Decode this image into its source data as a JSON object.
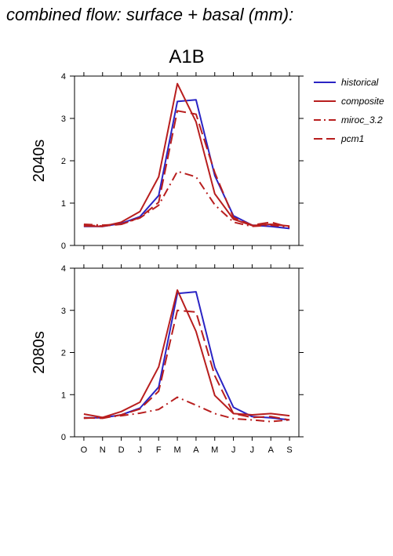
{
  "title": "combined flow: surface + basal (mm):",
  "chart_data": [
    {
      "type": "line",
      "title": "A1B",
      "ylabel": "2040s",
      "categories": [
        "O",
        "N",
        "D",
        "J",
        "F",
        "M",
        "A",
        "M",
        "J",
        "J",
        "A",
        "S"
      ],
      "ylim": [
        0,
        4
      ],
      "yticks": [
        0,
        1,
        2,
        3,
        4
      ],
      "series": [
        {
          "name": "historical",
          "color": "#2a24c4",
          "dash": "solid",
          "values": [
            0.45,
            0.45,
            0.52,
            0.68,
            1.18,
            3.4,
            3.44,
            1.65,
            0.7,
            0.48,
            0.45,
            0.4
          ]
        },
        {
          "name": "composite",
          "color": "#b81e1e",
          "dash": "solid",
          "values": [
            0.46,
            0.45,
            0.55,
            0.8,
            1.62,
            3.82,
            2.92,
            1.22,
            0.62,
            0.47,
            0.5,
            0.46
          ]
        },
        {
          "name": "miroc_3.2",
          "color": "#b81e1e",
          "dash": "dashdot",
          "values": [
            0.5,
            0.48,
            0.5,
            0.65,
            0.95,
            1.75,
            1.62,
            0.96,
            0.55,
            0.45,
            0.48,
            0.43
          ]
        },
        {
          "name": "pcm1",
          "color": "#b81e1e",
          "dash": "dash",
          "values": [
            0.48,
            0.46,
            0.5,
            0.66,
            1.02,
            3.18,
            3.1,
            1.72,
            0.66,
            0.48,
            0.55,
            0.43
          ]
        }
      ]
    },
    {
      "type": "line",
      "title": "",
      "ylabel": "2080s",
      "categories": [
        "O",
        "N",
        "D",
        "J",
        "F",
        "M",
        "A",
        "M",
        "J",
        "J",
        "A",
        "S"
      ],
      "ylim": [
        0,
        4
      ],
      "yticks": [
        0,
        1,
        2,
        3,
        4
      ],
      "series": [
        {
          "name": "historical",
          "color": "#2a24c4",
          "dash": "solid",
          "values": [
            0.45,
            0.45,
            0.52,
            0.68,
            1.18,
            3.4,
            3.44,
            1.65,
            0.7,
            0.48,
            0.45,
            0.4
          ]
        },
        {
          "name": "composite",
          "color": "#b81e1e",
          "dash": "solid",
          "values": [
            0.54,
            0.46,
            0.6,
            0.82,
            1.66,
            3.48,
            2.5,
            0.98,
            0.55,
            0.52,
            0.55,
            0.5
          ]
        },
        {
          "name": "miroc_3.2",
          "color": "#b81e1e",
          "dash": "dashdot",
          "values": [
            0.44,
            0.46,
            0.5,
            0.56,
            0.65,
            0.94,
            0.75,
            0.55,
            0.43,
            0.4,
            0.36,
            0.4
          ]
        },
        {
          "name": "pcm1",
          "color": "#b81e1e",
          "dash": "dash",
          "values": [
            0.45,
            0.44,
            0.52,
            0.66,
            1.08,
            3.0,
            2.96,
            1.45,
            0.55,
            0.46,
            0.48,
            0.4
          ]
        }
      ]
    }
  ],
  "legend": {
    "placement": "right",
    "entries": [
      {
        "label": "historical",
        "color": "#2a24c4",
        "dash": "solid"
      },
      {
        "label": "composite",
        "color": "#b81e1e",
        "dash": "solid"
      },
      {
        "label": "miroc_3.2",
        "color": "#b81e1e",
        "dash": "dashdot"
      },
      {
        "label": "pcm1",
        "color": "#b81e1e",
        "dash": "dash"
      }
    ]
  }
}
